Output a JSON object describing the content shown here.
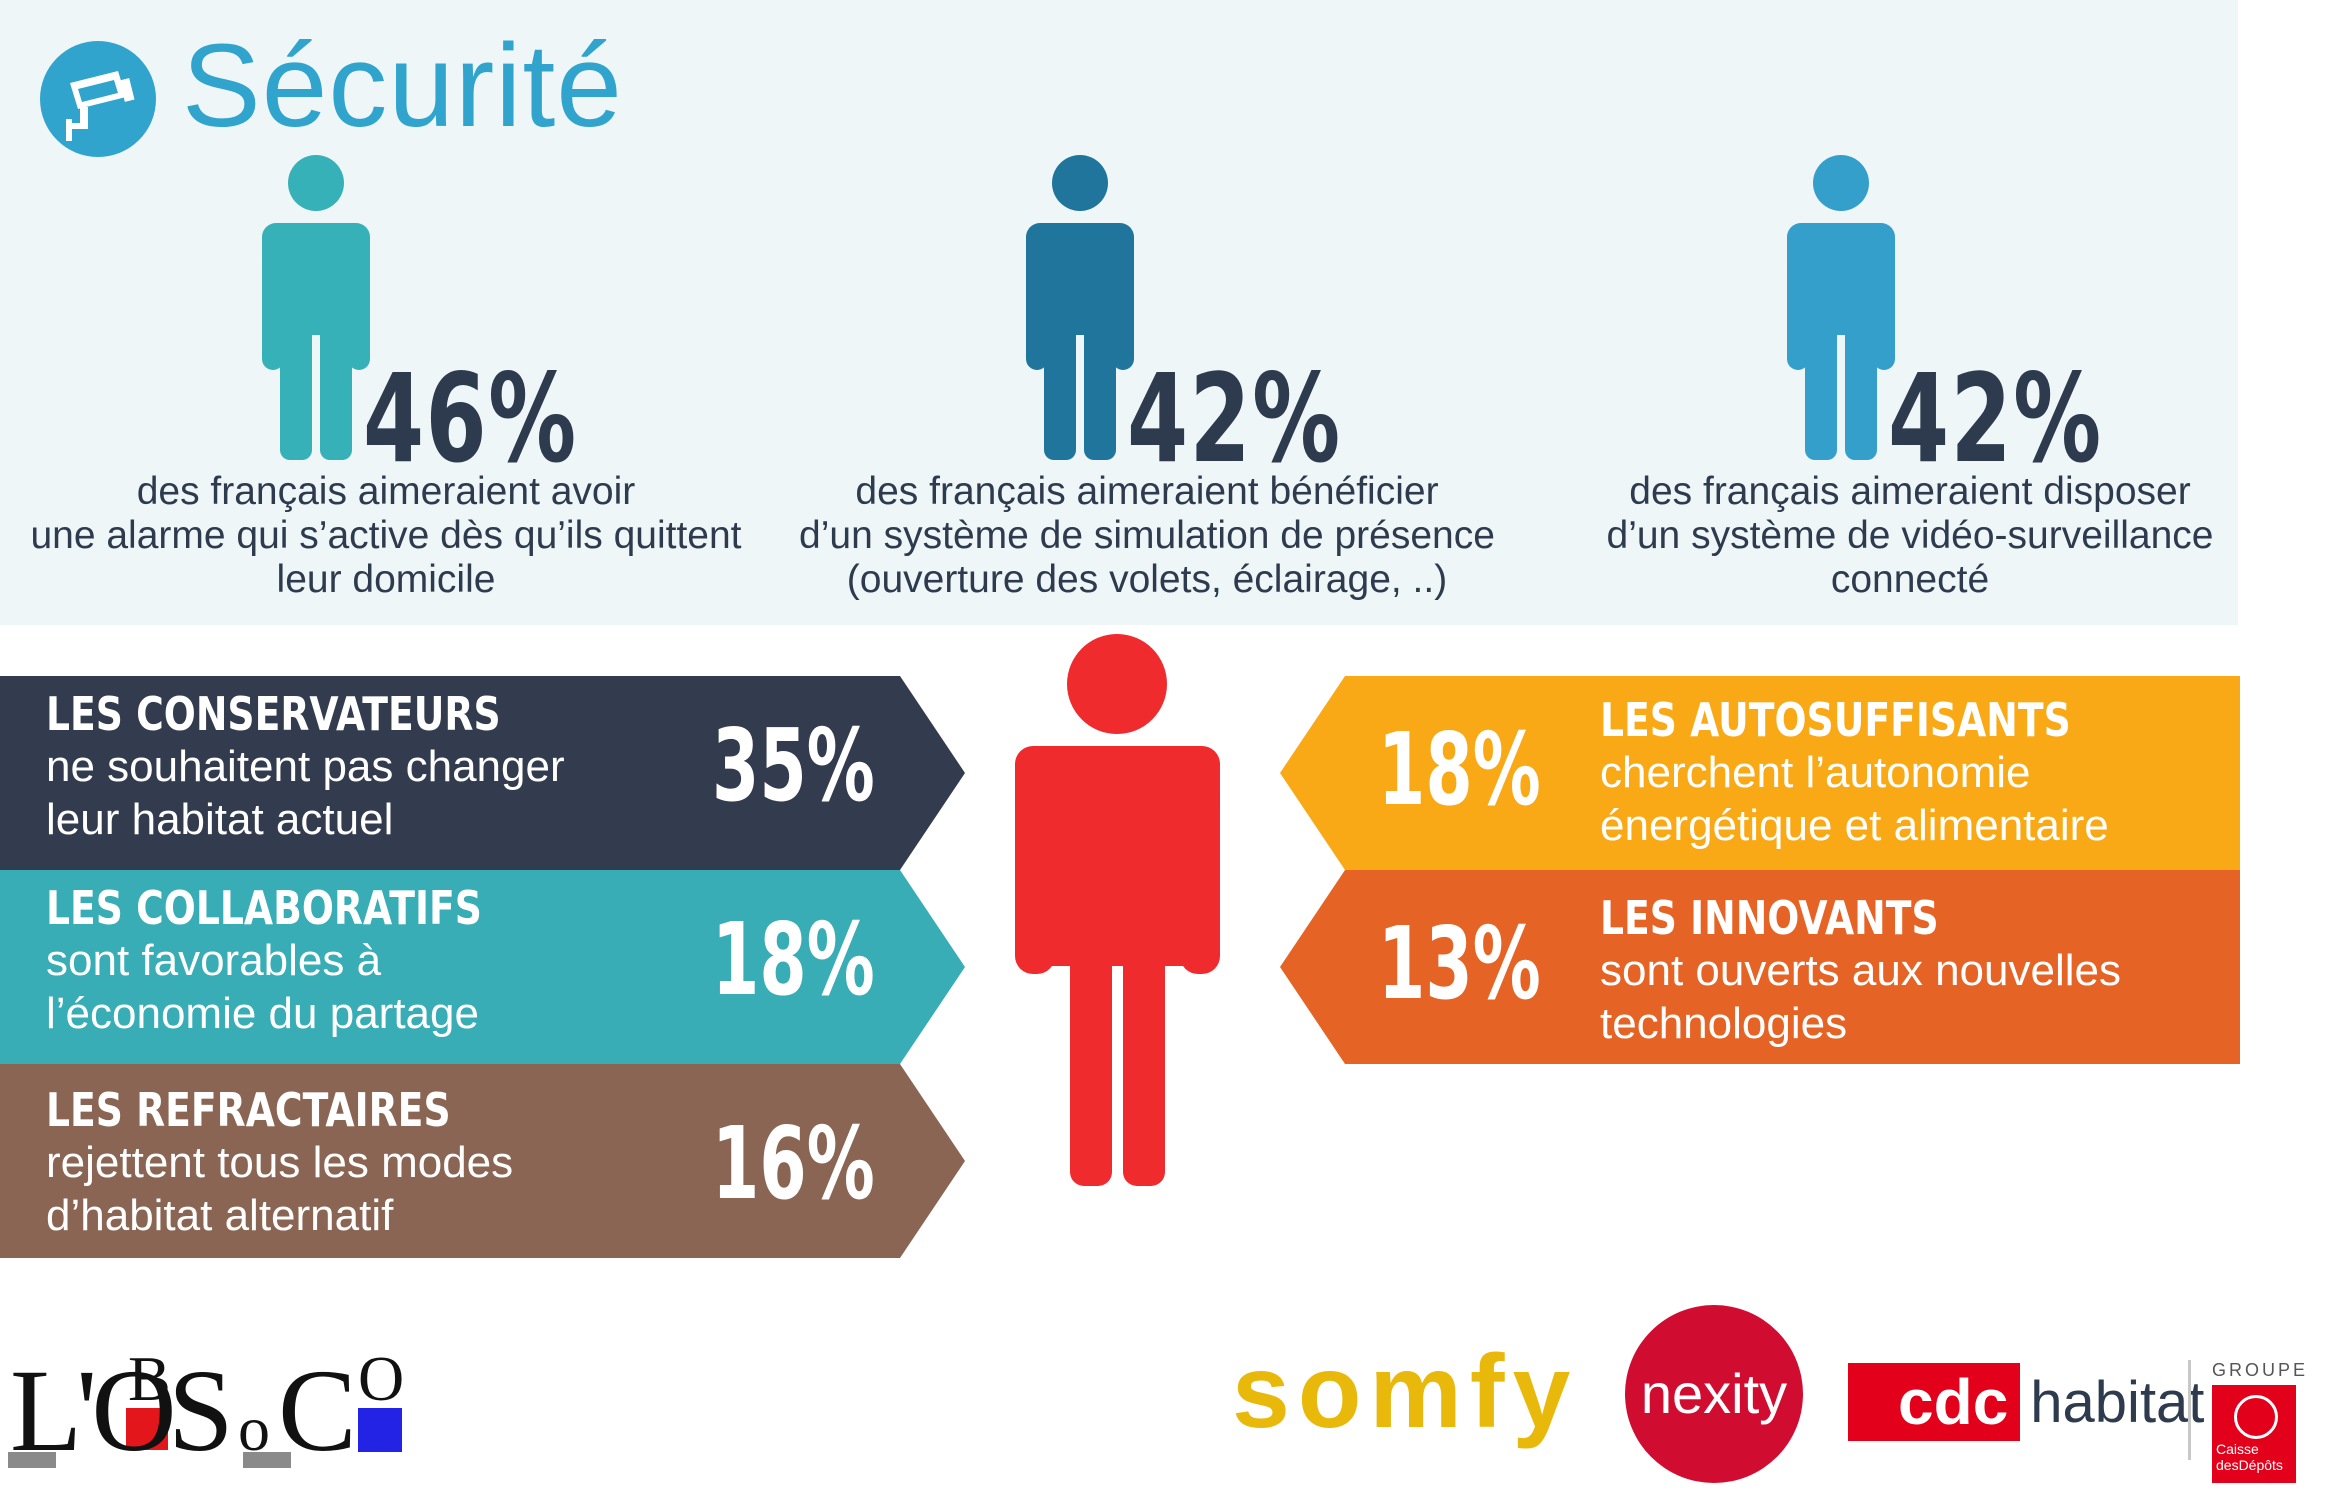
{
  "header": {
    "title": "Sécurité",
    "icon": "security-camera-icon"
  },
  "stats": [
    {
      "percent": "46%",
      "color": "#37b1b8",
      "lines": [
        "des français aimeraient avoir",
        "une alarme qui s’active dès qu’ils quittent",
        "leur domicile"
      ]
    },
    {
      "percent": "42%",
      "color": "#20759c",
      "lines": [
        "des français aimeraient bénéficier",
        "d’un système de simulation de présence",
        "(ouverture des volets, éclairage, ..)"
      ]
    },
    {
      "percent": "42%",
      "color": "#359fcb",
      "lines": [
        "des français aimeraient disposer",
        "d’un système de vidéo-surveillance",
        "connecté"
      ]
    }
  ],
  "segments_left": [
    {
      "name": "LES CONSERVATEURS",
      "lines": [
        "ne souhaitent pas changer",
        "leur habitat actuel"
      ],
      "percent": "35%",
      "color": "#333c4e"
    },
    {
      "name": "LES COLLABORATIFS",
      "lines": [
        "sont favorables à",
        "l’économie du partage"
      ],
      "percent": "18%",
      "color": "#39adb5"
    },
    {
      "name": "LES REFRACTAIRES",
      "lines": [
        "rejettent tous les modes",
        "d’habitat alternatif"
      ],
      "percent": "16%",
      "color": "#8b6553"
    }
  ],
  "segments_right": [
    {
      "name": "LES AUTOSUFFISANTS",
      "lines": [
        "cherchent l’autonomie",
        "énergétique et alimentaire"
      ],
      "percent": "18%",
      "color": "#f9a915"
    },
    {
      "name": "LES INNOVANTS",
      "lines": [
        "sont ouverts aux nouvelles",
        "technologies"
      ],
      "percent": "13%",
      "color": "#e56425"
    }
  ],
  "center_figure_color": "#ef2b2d",
  "logos": {
    "obsoco": "L'OBSoCO",
    "somfy": "somfy",
    "nexity": "nexity",
    "cdc_short": "cdc",
    "cdc_rest": "habitat",
    "groupe_cdc": [
      "GROUPE",
      "Caisse",
      "desDépôts"
    ]
  }
}
